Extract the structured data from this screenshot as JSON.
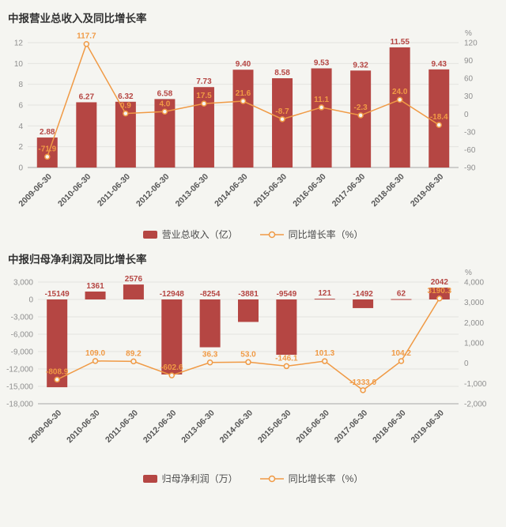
{
  "page": {
    "background": "#f5f5f1"
  },
  "chart_data": [
    {
      "type": "bar+line",
      "title": "中报营业总收入及同比增长率",
      "legend_position": "bottom",
      "grid": true,
      "categories": [
        "2009-06-30",
        "2010-06-30",
        "2011-06-30",
        "2012-06-30",
        "2013-06-30",
        "2014-06-30",
        "2015-06-30",
        "2016-06-30",
        "2017-06-30",
        "2018-06-30",
        "2019-06-30"
      ],
      "series": [
        {
          "name": "营业总收入（亿）",
          "type": "bar",
          "axis": "left",
          "color": "#b54643",
          "values": [
            2.88,
            6.27,
            6.32,
            6.58,
            7.73,
            9.4,
            8.58,
            9.53,
            9.32,
            11.55,
            9.43
          ],
          "labels": [
            "2.88",
            "6.27",
            "6.32",
            "6.58",
            "7.73",
            "9.40",
            "8.58",
            "9.53",
            "9.32",
            "11.55",
            "9.43"
          ]
        },
        {
          "name": "同比增长率（%）",
          "type": "line",
          "axis": "right",
          "color": "#f09a45",
          "values": [
            -71.9,
            117.7,
            0.9,
            4.0,
            17.5,
            21.6,
            -8.7,
            11.1,
            -2.3,
            24.0,
            -18.4
          ],
          "labels": [
            "-71.9",
            "117.7",
            "0.9",
            "4.0",
            "17.5",
            "21.6",
            "-8.7",
            "11.1",
            "-2.3",
            "24.0",
            "-18.4"
          ]
        }
      ],
      "left_axis": {
        "min": 0,
        "max": 12,
        "tick_labels": [
          "12",
          "10",
          "8",
          "6",
          "4",
          "2",
          "0"
        ]
      },
      "right_axis": {
        "min": -90,
        "max": 120,
        "unit": "%",
        "tick_labels": [
          "120",
          "90",
          "60",
          "30",
          "0",
          "-30",
          "-60",
          "-90"
        ]
      }
    },
    {
      "type": "bar+line",
      "title": "中报归母净利润及同比增长率",
      "legend_position": "bottom",
      "grid": true,
      "categories": [
        "2009-06-30",
        "2010-06-30",
        "2011-06-30",
        "2012-06-30",
        "2013-06-30",
        "2014-06-30",
        "2015-06-30",
        "2016-06-30",
        "2017-06-30",
        "2018-06-30",
        "2019-06-30"
      ],
      "series": [
        {
          "name": "归母净利润（万）",
          "type": "bar",
          "axis": "left",
          "color": "#b54643",
          "values": [
            -15149,
            1361,
            2576,
            -12948,
            -8254,
            -3881,
            -9549,
            121,
            -1492,
            62,
            2042
          ],
          "labels": [
            "-15149",
            "1361",
            "2576",
            "-12948",
            "-8254",
            "-3881",
            "-9549",
            "121",
            "-1492",
            "62",
            "2042"
          ]
        },
        {
          "name": "同比增长率（%）",
          "type": "line",
          "axis": "right",
          "color": "#f09a45",
          "values": [
            -808.9,
            109.0,
            89.2,
            -602.6,
            36.3,
            53.0,
            -146.1,
            101.3,
            -1333.0,
            104.2,
            3190.3
          ],
          "labels": [
            "-808.9",
            "109.0",
            "89.2",
            "-602.6",
            "36.3",
            "53.0",
            "-146.1",
            "101.3",
            "-1333.0",
            "104.2",
            "3190.3"
          ]
        }
      ],
      "left_axis": {
        "min": -18000,
        "max": 3000,
        "tick_labels": [
          "3,000",
          "0",
          "-3,000",
          "-6,000",
          "-9,000",
          "-12,000",
          "-15,000",
          "-18,000"
        ]
      },
      "right_axis": {
        "min": -2000,
        "max": 4000,
        "unit": "%",
        "tick_labels": [
          "4,000",
          "3,000",
          "2,000",
          "1,000",
          "0",
          "-1,000",
          "-2,000"
        ]
      }
    }
  ]
}
